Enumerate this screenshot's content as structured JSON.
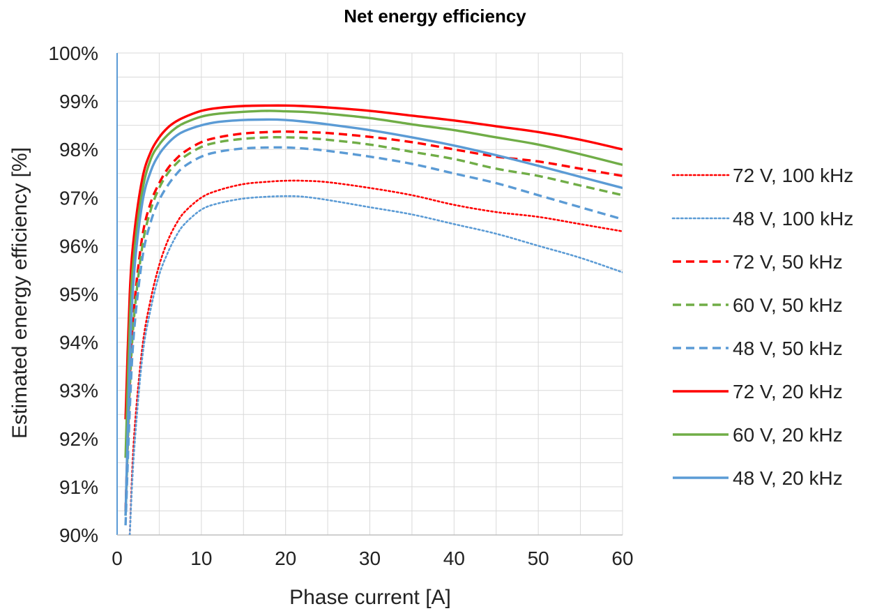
{
  "chart_data": {
    "type": "line",
    "title": "Net energy efficiency",
    "xlabel": "Phase current [A]",
    "ylabel": "Estimated energy efficiency [%]",
    "xlim": [
      0,
      60
    ],
    "ylim": [
      90,
      100
    ],
    "x_ticks": [
      0,
      10,
      20,
      30,
      40,
      50,
      60
    ],
    "x_tick_labels": [
      "0",
      "10",
      "20",
      "30",
      "40",
      "50",
      "60"
    ],
    "y_ticks": [
      90,
      91,
      92,
      93,
      94,
      95,
      96,
      97,
      98,
      99,
      100
    ],
    "y_tick_labels": [
      "90%",
      "91%",
      "92%",
      "93%",
      "94%",
      "95%",
      "96%",
      "97%",
      "98%",
      "99%",
      "100%"
    ],
    "grid": true,
    "legend_position": "right",
    "series": [
      {
        "name": "72 V, 100 kHz",
        "color": "#ff0000",
        "style": "dotted",
        "x": [
          1.5,
          2,
          3,
          4,
          5,
          6,
          7,
          8,
          10,
          12,
          15,
          18,
          20,
          22,
          25,
          30,
          35,
          40,
          45,
          50,
          55,
          60
        ],
        "y": [
          90.0,
          92.0,
          93.9,
          94.9,
          95.6,
          96.1,
          96.45,
          96.7,
          97.0,
          97.15,
          97.28,
          97.33,
          97.35,
          97.35,
          97.32,
          97.2,
          97.05,
          96.85,
          96.7,
          96.6,
          96.45,
          96.3
        ]
      },
      {
        "name": "48 V, 100 kHz",
        "color": "#5b9bd5",
        "style": "dotted",
        "x": [
          1.5,
          2,
          3,
          4,
          5,
          6,
          7,
          8,
          10,
          12,
          15,
          18,
          20,
          22,
          25,
          30,
          35,
          40,
          45,
          50,
          55,
          60
        ],
        "y": [
          90.0,
          91.7,
          93.7,
          94.7,
          95.4,
          95.85,
          96.2,
          96.45,
          96.75,
          96.88,
          96.98,
          97.02,
          97.03,
          97.02,
          96.95,
          96.8,
          96.65,
          96.45,
          96.25,
          96.0,
          95.75,
          95.45
        ]
      },
      {
        "name": "72 V, 50 kHz",
        "color": "#ff0000",
        "style": "dashed",
        "x": [
          1,
          1.5,
          2,
          3,
          4,
          5,
          6,
          7,
          8,
          10,
          12,
          15,
          18,
          20,
          22,
          25,
          30,
          35,
          40,
          45,
          50,
          55,
          60
        ],
        "y": [
          90.5,
          93.2,
          94.7,
          96.2,
          96.9,
          97.3,
          97.6,
          97.8,
          97.95,
          98.15,
          98.25,
          98.33,
          98.36,
          98.37,
          98.36,
          98.34,
          98.26,
          98.15,
          98.0,
          97.85,
          97.75,
          97.6,
          97.45
        ]
      },
      {
        "name": "60 V, 50 kHz",
        "color": "#70ad47",
        "style": "dashed",
        "x": [
          1,
          1.5,
          2,
          3,
          4,
          5,
          6,
          7,
          8,
          10,
          12,
          15,
          18,
          20,
          22,
          25,
          30,
          35,
          40,
          45,
          50,
          55,
          60
        ],
        "y": [
          90.4,
          93.0,
          94.5,
          96.0,
          96.75,
          97.2,
          97.5,
          97.7,
          97.85,
          98.05,
          98.15,
          98.22,
          98.25,
          98.25,
          98.24,
          98.2,
          98.1,
          97.95,
          97.8,
          97.6,
          97.45,
          97.25,
          97.05
        ]
      },
      {
        "name": "48 V, 50 kHz",
        "color": "#5b9bd5",
        "style": "dashed",
        "x": [
          1,
          1.5,
          2,
          3,
          4,
          5,
          6,
          7,
          8,
          10,
          12,
          15,
          18,
          20,
          22,
          25,
          30,
          35,
          40,
          45,
          50,
          55,
          60
        ],
        "y": [
          90.2,
          92.6,
          94.2,
          95.75,
          96.5,
          96.95,
          97.25,
          97.48,
          97.65,
          97.85,
          97.95,
          98.02,
          98.04,
          98.04,
          98.02,
          97.97,
          97.85,
          97.7,
          97.5,
          97.3,
          97.05,
          96.8,
          96.55
        ]
      },
      {
        "name": "72 V, 20 kHz",
        "color": "#ff0000",
        "style": "solid",
        "x": [
          1,
          1.5,
          2,
          3,
          4,
          5,
          6,
          7,
          8,
          10,
          12,
          15,
          18,
          20,
          22,
          25,
          30,
          35,
          40,
          45,
          50,
          55,
          60
        ],
        "y": [
          92.4,
          95.0,
          96.2,
          97.4,
          97.95,
          98.25,
          98.45,
          98.58,
          98.67,
          98.8,
          98.86,
          98.9,
          98.91,
          98.91,
          98.9,
          98.87,
          98.8,
          98.7,
          98.6,
          98.48,
          98.36,
          98.2,
          98.0
        ]
      },
      {
        "name": "60 V, 20 kHz",
        "color": "#70ad47",
        "style": "solid",
        "x": [
          1,
          1.5,
          2,
          3,
          4,
          5,
          6,
          7,
          8,
          10,
          12,
          15,
          18,
          20,
          22,
          25,
          30,
          35,
          40,
          45,
          50,
          55,
          60
        ],
        "y": [
          91.6,
          94.4,
          95.8,
          97.15,
          97.8,
          98.1,
          98.3,
          98.45,
          98.55,
          98.68,
          98.74,
          98.78,
          98.8,
          98.79,
          98.78,
          98.74,
          98.65,
          98.52,
          98.4,
          98.25,
          98.1,
          97.9,
          97.68
        ]
      },
      {
        "name": "48 V, 20 kHz",
        "color": "#5b9bd5",
        "style": "solid",
        "x": [
          1,
          1.5,
          2,
          3,
          4,
          5,
          6,
          7,
          8,
          10,
          12,
          15,
          18,
          20,
          22,
          25,
          30,
          35,
          40,
          45,
          50,
          55,
          60
        ],
        "y": [
          90.4,
          93.6,
          95.4,
          96.9,
          97.55,
          97.9,
          98.12,
          98.28,
          98.38,
          98.5,
          98.57,
          98.61,
          98.62,
          98.61,
          98.58,
          98.52,
          98.4,
          98.25,
          98.08,
          97.88,
          97.66,
          97.43,
          97.2
        ]
      }
    ]
  }
}
